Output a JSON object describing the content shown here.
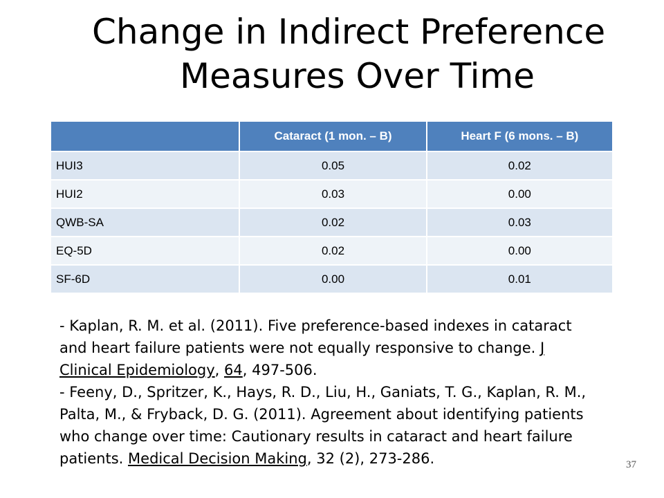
{
  "slide": {
    "title_line1": "Change in Indirect Preference",
    "title_line2": "Measures Over Time",
    "page_number": "37"
  },
  "table": {
    "headers": [
      "",
      "Cataract (1 mon. – B)",
      "Heart F (6 mons. – B)"
    ],
    "rows": [
      {
        "measure": "HUI3",
        "cataract": "0.05",
        "heart": "0.02"
      },
      {
        "measure": "HUI2",
        "cataract": "0.03",
        "heart": "0.00"
      },
      {
        "measure": "QWB-SA",
        "cataract": "0.02",
        "heart": "0.03"
      },
      {
        "measure": "EQ-5D",
        "cataract": "0.02",
        "heart": "0.00"
      },
      {
        "measure": "SF-6D",
        "cataract": "0.00",
        "heart": "0.01"
      }
    ],
    "colors": {
      "header_bg": "#4f81bd",
      "row_odd_bg": "#dbe5f1",
      "row_even_bg": "#eef3f8"
    }
  },
  "references": [
    {
      "prefix": "- Kaplan, R. M. et al.  (2011).  Five preference-based indexes in cataract and heart failure patients were not equally responsive to change.  ",
      "journal": "J Clinical Epidemiology",
      "sep": ", ",
      "volume": "64",
      "suffix": ", 497-506."
    },
    {
      "prefix": "- Feeny, D., Spritzer, K., Hays, R. D., Liu, H., Ganiats, T. G., Kaplan, R. M., Palta, M., & Fryback, D. G.  (2011).  Agreement about identifying patients who change over time: Cautionary results in cataract and heart failure patients.  ",
      "journal": "Medical Decision Making",
      "suffix": ", 32 (2), 273-286."
    }
  ]
}
